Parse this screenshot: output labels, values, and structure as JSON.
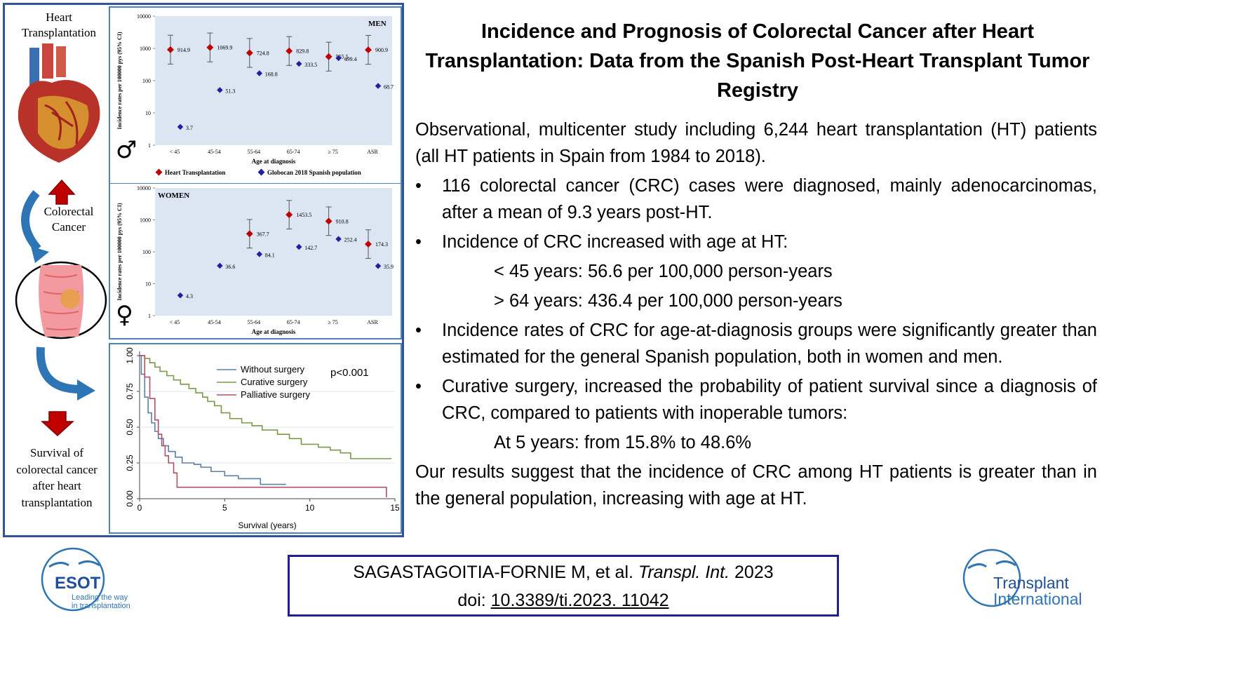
{
  "title": "Incidence and Prognosis of Colorectal Cancer after Heart Transplantation: Data from the Spanish Post-Heart Transplant Tumor Registry",
  "left_labels": {
    "heart": "Heart Transplantation",
    "crc": "Colorectal Cancer",
    "survival": "Survival of colorectal cancer after heart transplantation"
  },
  "colors": {
    "frame": "#2f5597",
    "red": "#c00000",
    "blue": "#1f1fa0",
    "plot_bg": "#dce6f2",
    "arrow": "#2e75b6"
  },
  "chart_data": [
    {
      "type": "scatter",
      "panel": "MEN",
      "symbol": "♂",
      "ylabel": "Incidence rates per 100000 pys (95% CI)",
      "xlabel": "Age at diagnosis",
      "yscale": "log",
      "ylim": [
        1,
        10000
      ],
      "yticks": [
        "1",
        "10",
        "100",
        "1000",
        "10000"
      ],
      "categories": [
        "< 45",
        "45-54",
        "55-64",
        "65-74",
        "≥ 75",
        "ASR"
      ],
      "legend": [
        "Heart Transplantation",
        "Globocan 2018 Spanish population"
      ],
      "series": [
        {
          "name": "Heart Transplantation",
          "values": [
            914.9,
            1069.9,
            724.8,
            829.8,
            555.5,
            900.9
          ],
          "labels": [
            "914.9",
            "1069.9",
            "724.8",
            "829.8",
            "555.5",
            "900.9"
          ]
        },
        {
          "name": "Globocan 2018 Spanish population",
          "values": [
            3.7,
            51.3,
            168.8,
            333.5,
            499.4,
            68.7
          ],
          "labels": [
            "3.7",
            "51.3",
            "168.8",
            "333.5",
            "499.4",
            "68.7"
          ]
        }
      ]
    },
    {
      "type": "scatter",
      "panel": "WOMEN",
      "symbol": "♀",
      "ylabel": "Incidence rates per 100000 pys (95% CI)",
      "xlabel": "Age at diagnosis",
      "yscale": "log",
      "ylim": [
        1,
        10000
      ],
      "yticks": [
        "1",
        "10",
        "100",
        "1000",
        "10000"
      ],
      "categories": [
        "< 45",
        "45-54",
        "55-64",
        "65-74",
        "≥ 75",
        "ASR"
      ],
      "series": [
        {
          "name": "Heart Transplantation",
          "values": [
            null,
            null,
            367.7,
            1453.5,
            910.8,
            174.3
          ],
          "labels": [
            "",
            "",
            "367.7",
            "1453.5",
            "910.8",
            "174.3"
          ]
        },
        {
          "name": "Globocan 2018 Spanish population",
          "values": [
            4.3,
            36.6,
            84.1,
            142.7,
            252.4,
            35.9
          ],
          "labels": [
            "4.3",
            "36.6",
            "84.1",
            "142.7",
            "252.4",
            "35.9"
          ]
        }
      ]
    },
    {
      "type": "line",
      "xlabel": "Survival (years)",
      "xlim": [
        0,
        15
      ],
      "ylim": [
        0,
        1
      ],
      "xticks": [
        "0",
        "5",
        "10",
        "15"
      ],
      "yticks": [
        "0.00",
        "0.25",
        "0.50",
        "0.75",
        "1.00"
      ],
      "annotation": "p<0.001",
      "series": [
        {
          "name": "Without surgery",
          "color": "#5b7fa6"
        },
        {
          "name": "Curative surgery",
          "color": "#7a9a4a"
        },
        {
          "name": "Palliative surgery",
          "color": "#b05060"
        }
      ]
    }
  ],
  "body": {
    "intro": "Observational, multicenter study including 6,244 heart transplantation (HT) patients (all HT patients in Spain from 1984 to 2018).",
    "b1": "116 colorectal cancer (CRC) cases were diagnosed, mainly adenocarcinomas, after a mean of 9.3 years post-HT.",
    "b2": "Incidence of CRC increased with age at HT:",
    "b2a": "< 45 years: 56.6 per 100,000 person-years",
    "b2b": "> 64 years: 436.4 per 100,000 person-years",
    "b3": "Incidence rates of CRC for age-at-diagnosis groups were significantly greater than estimated for the general Spanish population, both in women and men.",
    "b4": "Curative surgery, increased the probability of patient survival since a diagnosis of CRC, compared to patients with inoperable tumors:",
    "b4a": "At 5 years: from 15.8% to 48.6%",
    "outro": "Our results suggest that the incidence of CRC among HT patients is greater than in the general population, increasing with age at HT."
  },
  "citation": {
    "authors": "SAGASTAGOITIA-FORNIE M, et al.",
    "journal": "Transpl. Int.",
    "year": "2023",
    "doi_label": "doi:",
    "doi": "10.3389/ti.2023. 11042"
  },
  "logos": {
    "esot": {
      "name": "ESOT",
      "tagline1": "Leading the way",
      "tagline2": "in transplantation"
    },
    "ti": {
      "line1": "Transplant",
      "line2": "International"
    }
  }
}
